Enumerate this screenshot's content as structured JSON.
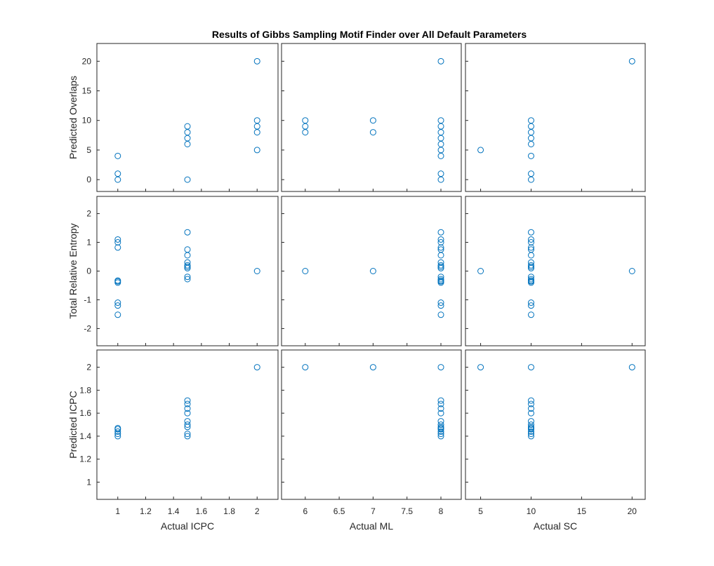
{
  "title": "Results of Gibbs Sampling Motif Finder over All Default Parameters",
  "colors": {
    "marker": "#0072BD",
    "axis": "#262626",
    "background": "#ffffff"
  },
  "chart_data": {
    "type": "scatter-matrix",
    "marker": "open-circle",
    "grid": false,
    "columns": [
      {
        "xlabel": "Actual ICPC",
        "xlim": [
          0.85,
          2.15
        ],
        "xticks": [
          1,
          1.2,
          1.4,
          1.6,
          1.8,
          2
        ],
        "xticklabels": [
          "1",
          "1.2",
          "1.4",
          "1.6",
          "1.8",
          "2"
        ]
      },
      {
        "xlabel": "Actual ML",
        "xlim": [
          5.65,
          8.3
        ],
        "xticks": [
          6,
          6.5,
          7,
          7.5,
          8
        ],
        "xticklabels": [
          "6",
          "6.5",
          "7",
          "7.5",
          "8"
        ]
      },
      {
        "xlabel": "Actual SC",
        "xlim": [
          3.5,
          21.3
        ],
        "xticks": [
          5,
          10,
          15,
          20
        ],
        "xticklabels": [
          "5",
          "10",
          "15",
          "20"
        ]
      }
    ],
    "rows": [
      {
        "ylabel": "Predicted Overlaps",
        "ylim": [
          -2.0,
          23.0
        ],
        "yticks": [
          0,
          5,
          10,
          15,
          20
        ],
        "yticklabels": [
          "0",
          "5",
          "10",
          "15",
          "20"
        ]
      },
      {
        "ylabel": "Total Relative Entropy",
        "ylim": [
          -2.6,
          2.6
        ],
        "yticks": [
          -2,
          -1,
          0,
          1,
          2
        ],
        "yticklabels": [
          "-2",
          "-1",
          "0",
          "1",
          "2"
        ]
      },
      {
        "ylabel": "Predicted ICPC",
        "ylim": [
          0.85,
          2.15
        ],
        "yticks": [
          1,
          1.2,
          1.4,
          1.6,
          1.8,
          2
        ],
        "yticklabels": [
          "1",
          "1.2",
          "1.4",
          "1.6",
          "1.8",
          "2"
        ]
      }
    ],
    "panels": [
      {
        "row": 0,
        "col": 0,
        "points": [
          [
            1,
            4
          ],
          [
            1,
            1
          ],
          [
            1,
            0
          ],
          [
            1.5,
            9
          ],
          [
            1.5,
            8
          ],
          [
            1.5,
            7
          ],
          [
            1.5,
            6
          ],
          [
            1.5,
            0
          ],
          [
            2,
            20
          ],
          [
            2,
            10
          ],
          [
            2,
            9
          ],
          [
            2,
            8
          ],
          [
            2,
            5
          ]
        ]
      },
      {
        "row": 0,
        "col": 1,
        "points": [
          [
            6,
            10
          ],
          [
            6,
            9
          ],
          [
            6,
            8
          ],
          [
            7,
            10
          ],
          [
            7,
            8
          ],
          [
            8,
            20
          ],
          [
            8,
            10
          ],
          [
            8,
            9
          ],
          [
            8,
            8
          ],
          [
            8,
            7
          ],
          [
            8,
            6
          ],
          [
            8,
            5
          ],
          [
            8,
            4
          ],
          [
            8,
            1
          ],
          [
            8,
            0
          ]
        ]
      },
      {
        "row": 0,
        "col": 2,
        "points": [
          [
            5,
            5
          ],
          [
            10,
            10
          ],
          [
            10,
            9
          ],
          [
            10,
            8
          ],
          [
            10,
            7
          ],
          [
            10,
            6
          ],
          [
            10,
            4
          ],
          [
            10,
            1
          ],
          [
            10,
            0
          ],
          [
            20,
            20
          ]
        ]
      },
      {
        "row": 1,
        "col": 0,
        "points": [
          [
            1,
            1.1
          ],
          [
            1,
            1.0
          ],
          [
            1,
            0.82
          ],
          [
            1,
            -0.33
          ],
          [
            1,
            -0.36
          ],
          [
            1,
            -0.4
          ],
          [
            1,
            -1.1
          ],
          [
            1,
            -1.2
          ],
          [
            1,
            -1.52
          ],
          [
            1.5,
            1.35
          ],
          [
            1.5,
            0.75
          ],
          [
            1.5,
            0.55
          ],
          [
            1.5,
            0.3
          ],
          [
            1.5,
            0.2
          ],
          [
            1.5,
            0.15
          ],
          [
            1.5,
            0.1
          ],
          [
            1.5,
            -0.2
          ],
          [
            1.5,
            -0.28
          ],
          [
            2,
            0
          ]
        ]
      },
      {
        "row": 1,
        "col": 1,
        "points": [
          [
            6,
            0
          ],
          [
            7,
            0
          ],
          [
            8,
            1.35
          ],
          [
            8,
            1.1
          ],
          [
            8,
            1.0
          ],
          [
            8,
            0.82
          ],
          [
            8,
            0.75
          ],
          [
            8,
            0.55
          ],
          [
            8,
            0.3
          ],
          [
            8,
            0.2
          ],
          [
            8,
            0.15
          ],
          [
            8,
            0.1
          ],
          [
            8,
            -0.2
          ],
          [
            8,
            -0.28
          ],
          [
            8,
            -0.33
          ],
          [
            8,
            -0.36
          ],
          [
            8,
            -0.4
          ],
          [
            8,
            -1.1
          ],
          [
            8,
            -1.2
          ],
          [
            8,
            -1.52
          ]
        ]
      },
      {
        "row": 1,
        "col": 2,
        "points": [
          [
            5,
            0
          ],
          [
            10,
            1.35
          ],
          [
            10,
            1.1
          ],
          [
            10,
            1.0
          ],
          [
            10,
            0.82
          ],
          [
            10,
            0.75
          ],
          [
            10,
            0.55
          ],
          [
            10,
            0.3
          ],
          [
            10,
            0.2
          ],
          [
            10,
            0.15
          ],
          [
            10,
            0.1
          ],
          [
            10,
            -0.2
          ],
          [
            10,
            -0.28
          ],
          [
            10,
            -0.33
          ],
          [
            10,
            -0.36
          ],
          [
            10,
            -0.4
          ],
          [
            10,
            -1.1
          ],
          [
            10,
            -1.2
          ],
          [
            10,
            -1.52
          ],
          [
            20,
            0
          ]
        ]
      },
      {
        "row": 2,
        "col": 0,
        "points": [
          [
            1,
            1.47
          ],
          [
            1,
            1.46
          ],
          [
            1,
            1.44
          ],
          [
            1,
            1.42
          ],
          [
            1,
            1.4
          ],
          [
            1.5,
            1.71
          ],
          [
            1.5,
            1.68
          ],
          [
            1.5,
            1.64
          ],
          [
            1.5,
            1.6
          ],
          [
            1.5,
            1.53
          ],
          [
            1.5,
            1.5
          ],
          [
            1.5,
            1.48
          ],
          [
            1.5,
            1.42
          ],
          [
            1.5,
            1.4
          ],
          [
            2,
            2
          ]
        ]
      },
      {
        "row": 2,
        "col": 1,
        "points": [
          [
            6,
            2
          ],
          [
            7,
            2
          ],
          [
            8,
            2
          ],
          [
            8,
            1.71
          ],
          [
            8,
            1.68
          ],
          [
            8,
            1.64
          ],
          [
            8,
            1.6
          ],
          [
            8,
            1.53
          ],
          [
            8,
            1.5
          ],
          [
            8,
            1.48
          ],
          [
            8,
            1.47
          ],
          [
            8,
            1.46
          ],
          [
            8,
            1.44
          ],
          [
            8,
            1.42
          ],
          [
            8,
            1.4
          ]
        ]
      },
      {
        "row": 2,
        "col": 2,
        "points": [
          [
            5,
            2
          ],
          [
            10,
            2
          ],
          [
            10,
            1.71
          ],
          [
            10,
            1.68
          ],
          [
            10,
            1.64
          ],
          [
            10,
            1.6
          ],
          [
            10,
            1.53
          ],
          [
            10,
            1.5
          ],
          [
            10,
            1.48
          ],
          [
            10,
            1.47
          ],
          [
            10,
            1.46
          ],
          [
            10,
            1.44
          ],
          [
            10,
            1.42
          ],
          [
            10,
            1.4
          ],
          [
            20,
            2
          ]
        ]
      }
    ]
  }
}
